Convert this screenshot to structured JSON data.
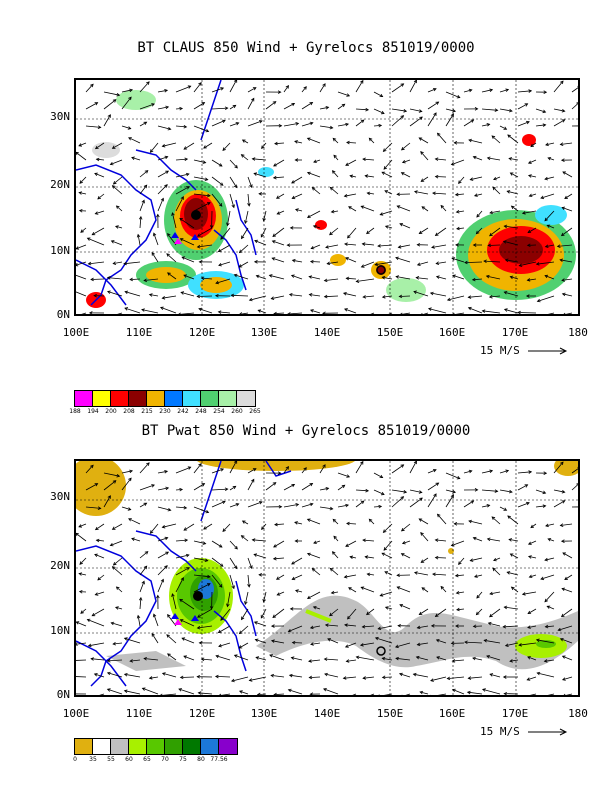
{
  "panels": [
    {
      "title": "BT CLAUS 850 Wind + Gyrelocs 851019/0000",
      "lat_labels": [
        "30N",
        "20N",
        "10N",
        "0N"
      ],
      "lon_labels": [
        "100E",
        "110E",
        "120E",
        "130E",
        "140E",
        "150E",
        "160E",
        "170E",
        "180"
      ],
      "vector_ref": "15 M/S",
      "colorbar_colors": [
        "#ff00ff",
        "#ffff00",
        "#ff0000",
        "#8b0000",
        "#f0b400",
        "#0078ff",
        "#40e0ff",
        "#50d070",
        "#a8f0a8",
        "#dcdcdc"
      ],
      "colorbar_labels": [
        "188",
        "194",
        "200",
        "208",
        "215",
        "230",
        "242",
        "248",
        "254",
        "260",
        "265"
      ]
    },
    {
      "title": "BT Pwat 850 Wind + Gyrelocs 851019/0000",
      "lat_labels": [
        "30N",
        "20N",
        "10N",
        "0N"
      ],
      "lon_labels": [
        "100E",
        "110E",
        "120E",
        "130E",
        "140E",
        "150E",
        "160E",
        "170E",
        "180"
      ],
      "vector_ref": "15 M/S",
      "colorbar_colors": [
        "#e0b010",
        "#ffffff",
        "#c0c0c0",
        "#a8f000",
        "#58c800",
        "#30a000",
        "#007800",
        "#1c78d8",
        "#8800cc"
      ],
      "colorbar_labels": [
        "0",
        "35",
        "55",
        "60",
        "65",
        "70",
        "75",
        "80",
        "77.56"
      ]
    }
  ]
}
